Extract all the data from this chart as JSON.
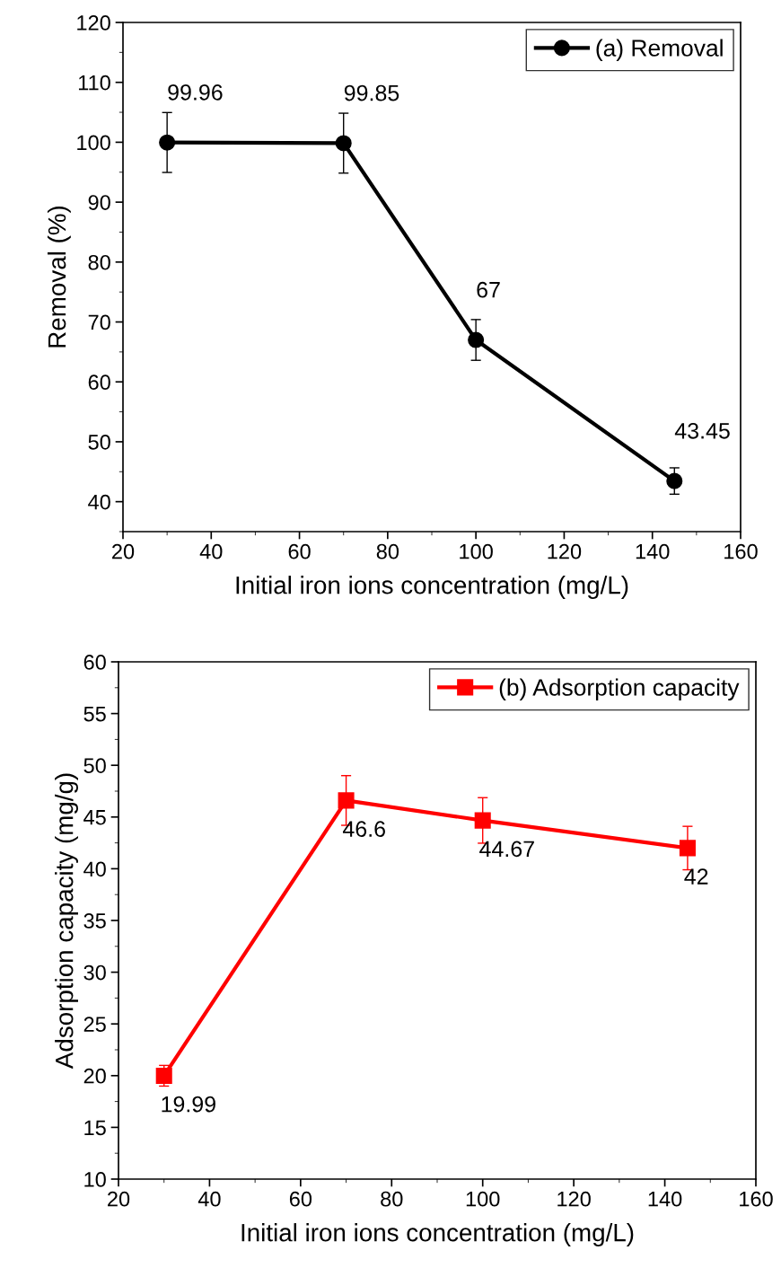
{
  "chart_data": [
    {
      "type": "line",
      "xlabel": "Initial iron ions concentration (mg/L)",
      "ylabel": "Removal (%)",
      "x": [
        30,
        70,
        100,
        145
      ],
      "series": [
        {
          "name": "(a) Removal",
          "color": "#000000",
          "values": [
            99.96,
            99.85,
            67,
            43.45
          ],
          "errors": [
            5,
            5,
            3.4,
            2.2
          ]
        }
      ],
      "xlim": [
        20,
        160
      ],
      "xticks": [
        20,
        40,
        60,
        80,
        100,
        120,
        140,
        160
      ],
      "ylim": [
        35,
        120
      ],
      "yticks": [
        40,
        50,
        60,
        70,
        80,
        90,
        100,
        110,
        120
      ],
      "data_labels": true,
      "legend": "top right",
      "marker": "circle",
      "line_style": "solid",
      "grid": false
    },
    {
      "type": "line",
      "xlabel": "Initial iron ions concentration (mg/L)",
      "ylabel": "Adsorption capacity (mg/g)",
      "x": [
        30,
        70,
        100,
        145
      ],
      "series": [
        {
          "name": "(b) Adsorption capacity",
          "color": "#ff0000",
          "values": [
            19.99,
            46.6,
            44.67,
            42
          ],
          "errors": [
            1,
            2.4,
            2.2,
            2.1
          ]
        }
      ],
      "xlim": [
        20,
        160
      ],
      "xticks": [
        20,
        40,
        60,
        80,
        100,
        120,
        140,
        160
      ],
      "ylim": [
        10,
        60
      ],
      "yticks": [
        10,
        15,
        20,
        25,
        30,
        35,
        40,
        45,
        50,
        55,
        60
      ],
      "data_labels": true,
      "legend": "top right",
      "marker": "square",
      "line_style": "solid",
      "grid": false
    }
  ]
}
